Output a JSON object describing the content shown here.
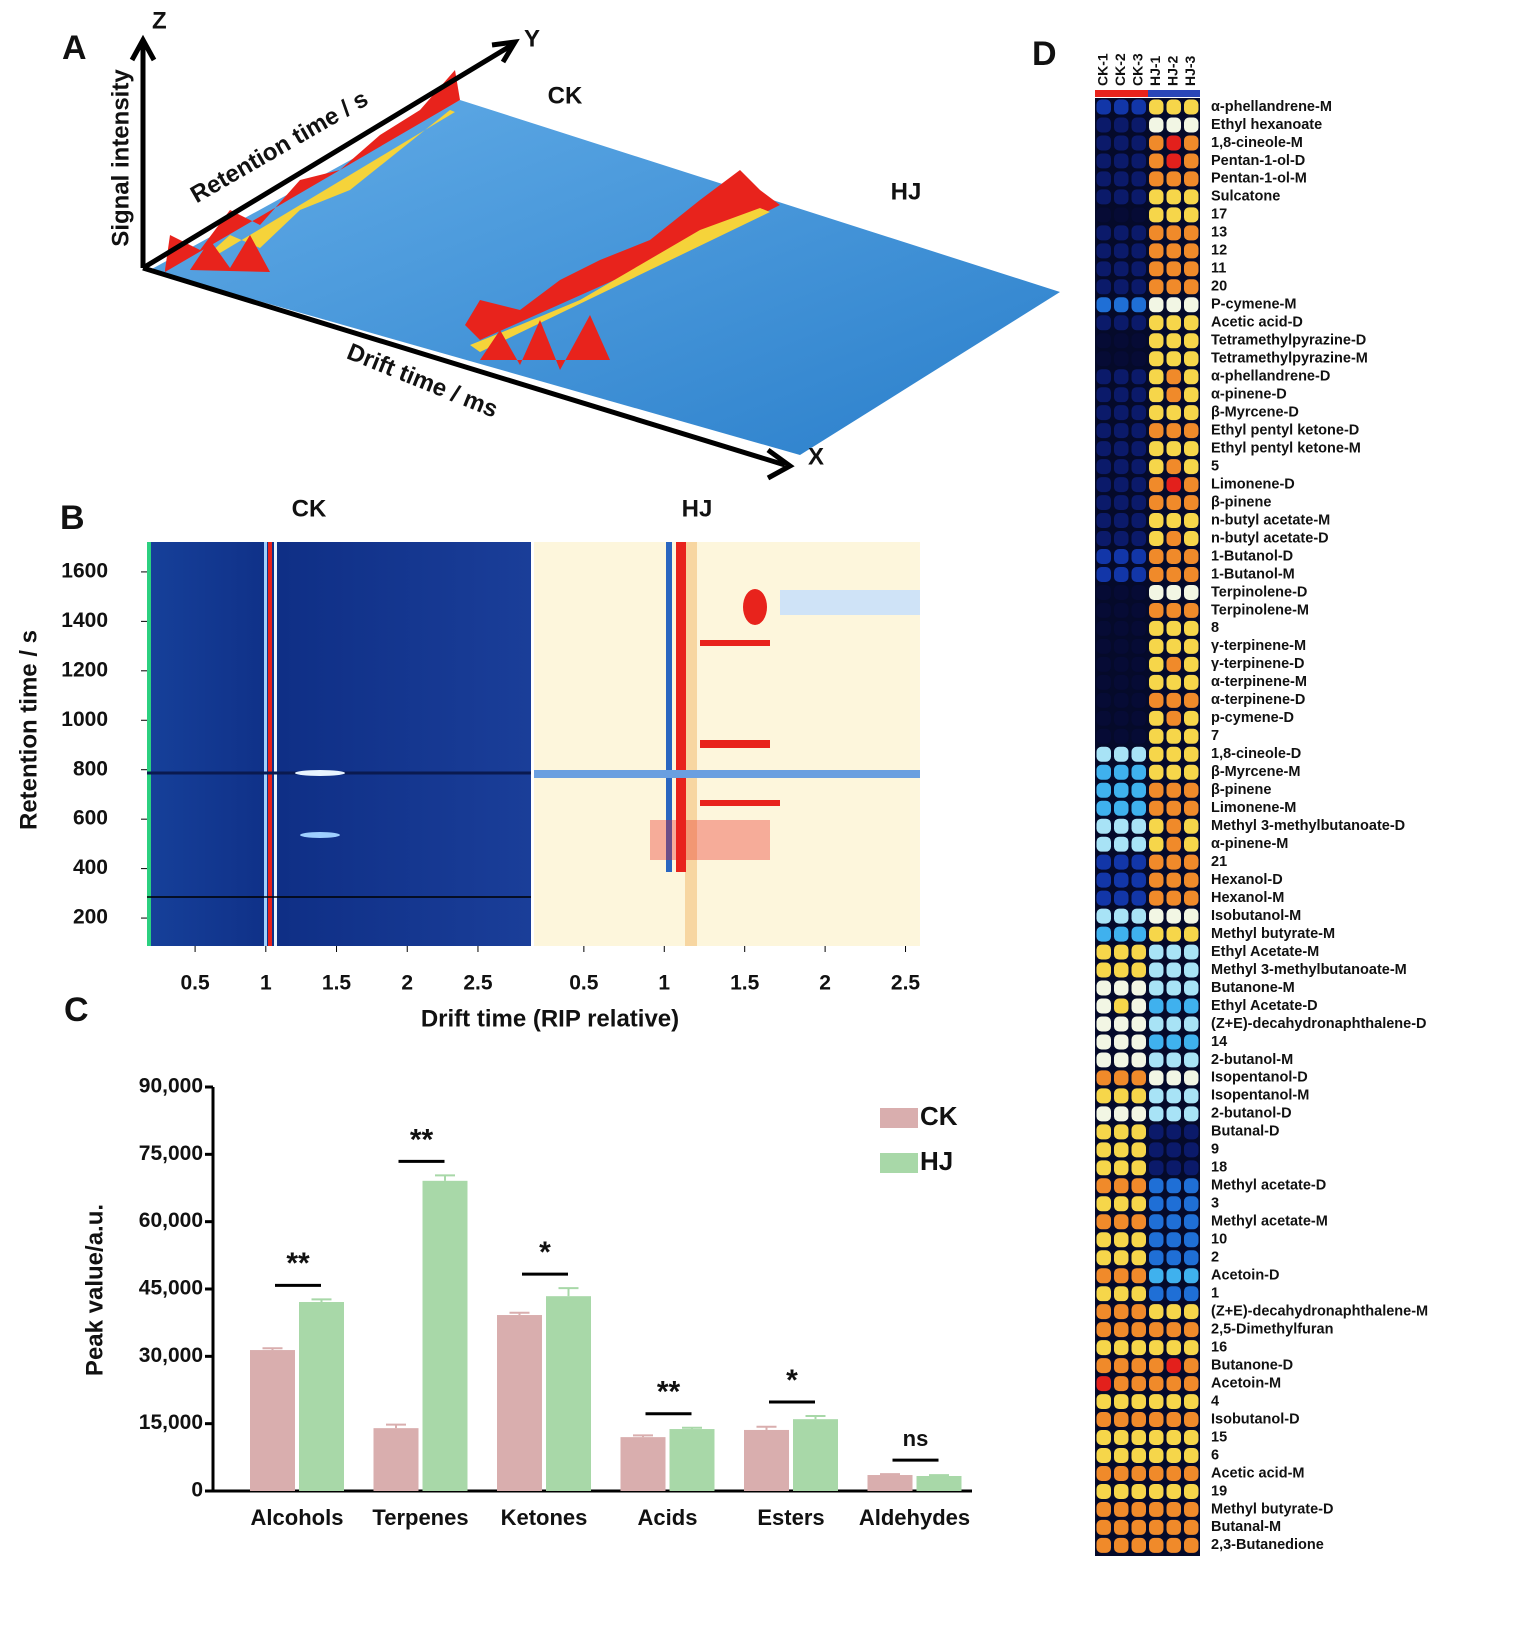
{
  "panel_a": {
    "label": "A",
    "z_axis": "Z",
    "y_axis": "Y",
    "x_axis": "X",
    "z_title": "Signal intensity",
    "y_title": "Retention time / s",
    "x_title": "Drift time / ms",
    "sample_1": "CK",
    "sample_2": "HJ"
  },
  "panel_b": {
    "label": "B",
    "ylabel": "Retention time / s",
    "xlabel": "Drift time (RIP relative)",
    "ylim": [
      87,
      1721
    ],
    "yticks": [
      200,
      400,
      600,
      800,
      1000,
      1200,
      1400,
      1600
    ],
    "panels": [
      {
        "title": "CK",
        "xlim": [
          0.16,
          2.875
        ],
        "xticks": [
          0.5,
          1.0,
          1.5,
          2.0,
          2.5
        ]
      },
      {
        "title": "HJ",
        "xlim": [
          0.19,
          2.59
        ],
        "xticks": [
          0.5,
          1.0,
          1.5,
          2.0,
          2.5
        ]
      }
    ]
  },
  "chart_data": {
    "type": "bar",
    "label": "C",
    "ylabel": "Peak value/a.u.",
    "categories": [
      "Alcohols",
      "Terpenes",
      "Ketones",
      "Acids",
      "Esters",
      "Aldehydes"
    ],
    "series": [
      {
        "name": "CK",
        "color": "#d9aeae",
        "values": [
          31400,
          14000,
          39200,
          12000,
          13600,
          3560
        ],
        "errors": [
          400,
          800,
          500,
          400,
          700,
          200
        ]
      },
      {
        "name": "HJ",
        "color": "#a8d8a8",
        "values": [
          42100,
          69100,
          43400,
          13800,
          16000,
          3340
        ],
        "errors": [
          600,
          1200,
          1800,
          300,
          700,
          200
        ]
      }
    ],
    "significance": [
      "**",
      "**",
      "*",
      "**",
      "*",
      "ns"
    ],
    "ylim": [
      0,
      90000
    ],
    "yticks": [
      {
        "value": 0,
        "label": "0"
      },
      {
        "value": 15000,
        "label": "15,000"
      },
      {
        "value": 30000,
        "label": "30,000"
      },
      {
        "value": 45000,
        "label": "45,000"
      },
      {
        "value": 60000,
        "label": "60,000"
      },
      {
        "value": 75000,
        "label": "75,000"
      },
      {
        "value": 90000,
        "label": "90,000"
      }
    ],
    "legend": "upper right"
  },
  "panel_d": {
    "label": "D",
    "columns": [
      "CK-1",
      "CK-2",
      "CK-3",
      "HJ-1",
      "HJ-2",
      "HJ-3"
    ],
    "rows": [
      {
        "label": "α-phellandrene-M",
        "values": [
          2,
          2,
          2,
          7,
          7,
          7
        ]
      },
      {
        "label": "Ethyl hexanoate",
        "values": [
          1,
          1,
          1,
          6,
          6,
          6
        ]
      },
      {
        "label": "1,8-cineole-M",
        "values": [
          1,
          1,
          1,
          8,
          9,
          8
        ]
      },
      {
        "label": "Pentan-1-ol-D",
        "values": [
          1,
          1,
          1,
          8,
          9,
          8
        ]
      },
      {
        "label": "Pentan-1-ol-M",
        "values": [
          1,
          1,
          1,
          8,
          8,
          8
        ]
      },
      {
        "label": "Sulcatone",
        "values": [
          1,
          1,
          1,
          7,
          7,
          7
        ]
      },
      {
        "label": "17",
        "values": [
          0,
          0,
          0,
          7,
          7,
          7
        ]
      },
      {
        "label": "13",
        "values": [
          1,
          1,
          1,
          8,
          8,
          8
        ]
      },
      {
        "label": "12",
        "values": [
          1,
          1,
          1,
          8,
          8,
          8
        ]
      },
      {
        "label": "11",
        "values": [
          1,
          1,
          1,
          8,
          8,
          8
        ]
      },
      {
        "label": "20",
        "values": [
          1,
          1,
          1,
          8,
          8,
          8
        ]
      },
      {
        "label": "P-cymene-M",
        "values": [
          3,
          3,
          3,
          6,
          6,
          6
        ]
      },
      {
        "label": "Acetic acid-D",
        "values": [
          1,
          1,
          1,
          7,
          7,
          7
        ]
      },
      {
        "label": "Tetramethylpyrazine-D",
        "values": [
          0,
          0,
          0,
          7,
          7,
          7
        ]
      },
      {
        "label": "Tetramethylpyrazine-M",
        "values": [
          0,
          0,
          0,
          7,
          7,
          7
        ]
      },
      {
        "label": "α-phellandrene-D",
        "values": [
          1,
          1,
          1,
          7,
          8,
          7
        ]
      },
      {
        "label": "α-pinene-D",
        "values": [
          1,
          1,
          1,
          7,
          8,
          7
        ]
      },
      {
        "label": "β-Myrcene-D",
        "values": [
          1,
          1,
          1,
          7,
          7,
          7
        ]
      },
      {
        "label": "Ethyl pentyl ketone-D",
        "values": [
          1,
          1,
          1,
          8,
          8,
          8
        ]
      },
      {
        "label": "Ethyl pentyl ketone-M",
        "values": [
          1,
          1,
          1,
          7,
          7,
          7
        ]
      },
      {
        "label": "5",
        "values": [
          1,
          1,
          1,
          7,
          8,
          7
        ]
      },
      {
        "label": "Limonene-D",
        "values": [
          1,
          1,
          1,
          8,
          9,
          8
        ]
      },
      {
        "label": "β-pinene",
        "values": [
          1,
          1,
          1,
          8,
          8,
          8
        ]
      },
      {
        "label": "n-butyl acetate-M",
        "values": [
          1,
          1,
          1,
          7,
          7,
          7
        ]
      },
      {
        "label": "n-butyl acetate-D",
        "values": [
          1,
          1,
          1,
          7,
          8,
          7
        ]
      },
      {
        "label": "1-Butanol-D",
        "values": [
          2,
          2,
          2,
          8,
          8,
          8
        ]
      },
      {
        "label": "1-Butanol-M",
        "values": [
          2,
          2,
          2,
          8,
          8,
          8
        ]
      },
      {
        "label": "Terpinolene-D",
        "values": [
          0,
          0,
          0,
          6,
          6,
          6
        ]
      },
      {
        "label": "Terpinolene-M",
        "values": [
          0,
          0,
          0,
          8,
          8,
          8
        ]
      },
      {
        "label": "8",
        "values": [
          0,
          0,
          0,
          7,
          7,
          7
        ]
      },
      {
        "label": "γ-terpinene-M",
        "values": [
          0,
          0,
          0,
          7,
          7,
          7
        ]
      },
      {
        "label": "γ-terpinene-D",
        "values": [
          0,
          0,
          0,
          7,
          8,
          7
        ]
      },
      {
        "label": "α-terpinene-M",
        "values": [
          0,
          0,
          0,
          7,
          7,
          7
        ]
      },
      {
        "label": "α-terpinene-D",
        "values": [
          0,
          0,
          0,
          8,
          8,
          8
        ]
      },
      {
        "label": "p-cymene-D",
        "values": [
          0,
          0,
          0,
          7,
          8,
          7
        ]
      },
      {
        "label": "7",
        "values": [
          0,
          0,
          0,
          7,
          7,
          7
        ]
      },
      {
        "label": "1,8-cineole-D",
        "values": [
          5,
          5,
          5,
          7,
          7,
          7
        ]
      },
      {
        "label": "β-Myrcene-M",
        "values": [
          4,
          4,
          4,
          7,
          7,
          7
        ]
      },
      {
        "label": "β-pinene",
        "values": [
          4,
          4,
          4,
          8,
          8,
          8
        ]
      },
      {
        "label": "Limonene-M",
        "values": [
          4,
          4,
          4,
          8,
          8,
          8
        ]
      },
      {
        "label": "Methyl 3-methylbutanoate-D",
        "values": [
          5,
          5,
          5,
          7,
          8,
          7
        ]
      },
      {
        "label": "α-pinene-M",
        "values": [
          5,
          5,
          5,
          7,
          8,
          7
        ]
      },
      {
        "label": "21",
        "values": [
          2,
          2,
          2,
          8,
          8,
          8
        ]
      },
      {
        "label": "Hexanol-D",
        "values": [
          2,
          2,
          2,
          8,
          8,
          8
        ]
      },
      {
        "label": "Hexanol-M",
        "values": [
          2,
          2,
          2,
          8,
          8,
          8
        ]
      },
      {
        "label": "Isobutanol-M",
        "values": [
          5,
          5,
          5,
          6,
          6,
          6
        ]
      },
      {
        "label": "Methyl butyrate-M",
        "values": [
          4,
          4,
          4,
          7,
          7,
          7
        ]
      },
      {
        "label": "Ethyl Acetate-M",
        "values": [
          7,
          7,
          7,
          5,
          5,
          5
        ]
      },
      {
        "label": "Methyl 3-methylbutanoate-M",
        "values": [
          7,
          7,
          7,
          5,
          5,
          5
        ]
      },
      {
        "label": "Butanone-M",
        "values": [
          6,
          6,
          6,
          5,
          5,
          5
        ]
      },
      {
        "label": "Ethyl Acetate-D",
        "values": [
          6,
          7,
          6,
          4,
          4,
          4
        ]
      },
      {
        "label": "(Z+E)-decahydronaphthalene-D",
        "values": [
          6,
          6,
          6,
          5,
          5,
          5
        ]
      },
      {
        "label": "14",
        "values": [
          6,
          6,
          6,
          4,
          4,
          4
        ]
      },
      {
        "label": "2-butanol-M",
        "values": [
          6,
          6,
          6,
          5,
          5,
          5
        ]
      },
      {
        "label": "Isopentanol-D",
        "values": [
          8,
          8,
          8,
          6,
          6,
          6
        ]
      },
      {
        "label": "Isopentanol-M",
        "values": [
          7,
          7,
          7,
          5,
          5,
          5
        ]
      },
      {
        "label": "2-butanol-D",
        "values": [
          6,
          6,
          6,
          5,
          5,
          5
        ]
      },
      {
        "label": "Butanal-D",
        "values": [
          7,
          7,
          7,
          1,
          1,
          1
        ]
      },
      {
        "label": "9",
        "values": [
          7,
          7,
          7,
          1,
          1,
          1
        ]
      },
      {
        "label": "18",
        "values": [
          7,
          7,
          7,
          1,
          1,
          1
        ]
      },
      {
        "label": "Methyl acetate-D",
        "values": [
          8,
          8,
          8,
          3,
          3,
          3
        ]
      },
      {
        "label": "3",
        "values": [
          7,
          7,
          7,
          3,
          3,
          3
        ]
      },
      {
        "label": "Methyl acetate-M",
        "values": [
          8,
          8,
          8,
          3,
          3,
          3
        ]
      },
      {
        "label": "10",
        "values": [
          7,
          7,
          7,
          3,
          3,
          3
        ]
      },
      {
        "label": "2",
        "values": [
          7,
          7,
          7,
          3,
          3,
          3
        ]
      },
      {
        "label": "Acetoin-D",
        "values": [
          8,
          8,
          8,
          4,
          4,
          4
        ]
      },
      {
        "label": "1",
        "values": [
          7,
          7,
          7,
          3,
          3,
          3
        ]
      },
      {
        "label": "(Z+E)-decahydronaphthalene-M",
        "values": [
          8,
          8,
          8,
          7,
          7,
          7
        ]
      },
      {
        "label": "2,5-Dimethylfuran",
        "values": [
          8,
          8,
          8,
          8,
          8,
          8
        ]
      },
      {
        "label": "16",
        "values": [
          7,
          7,
          7,
          7,
          7,
          7
        ]
      },
      {
        "label": "Butanone-D",
        "values": [
          8,
          8,
          8,
          8,
          9,
          8
        ]
      },
      {
        "label": "Acetoin-M",
        "values": [
          9,
          8,
          8,
          8,
          8,
          8
        ]
      },
      {
        "label": "4",
        "values": [
          7,
          7,
          7,
          7,
          7,
          7
        ]
      },
      {
        "label": "Isobutanol-D",
        "values": [
          8,
          8,
          8,
          8,
          8,
          8
        ]
      },
      {
        "label": "15",
        "values": [
          7,
          7,
          7,
          7,
          7,
          7
        ]
      },
      {
        "label": "6",
        "values": [
          7,
          7,
          7,
          7,
          7,
          7
        ]
      },
      {
        "label": "Acetic acid-M",
        "values": [
          8,
          8,
          8,
          8,
          8,
          8
        ]
      },
      {
        "label": "19",
        "values": [
          7,
          7,
          7,
          7,
          7,
          7
        ]
      },
      {
        "label": "Methyl butyrate-D",
        "values": [
          8,
          8,
          8,
          8,
          8,
          8
        ]
      },
      {
        "label": "Butanal-M",
        "values": [
          8,
          8,
          8,
          8,
          8,
          8
        ]
      },
      {
        "label": "2,3-Butanedione",
        "values": [
          8,
          8,
          8,
          8,
          8,
          8
        ]
      }
    ]
  }
}
